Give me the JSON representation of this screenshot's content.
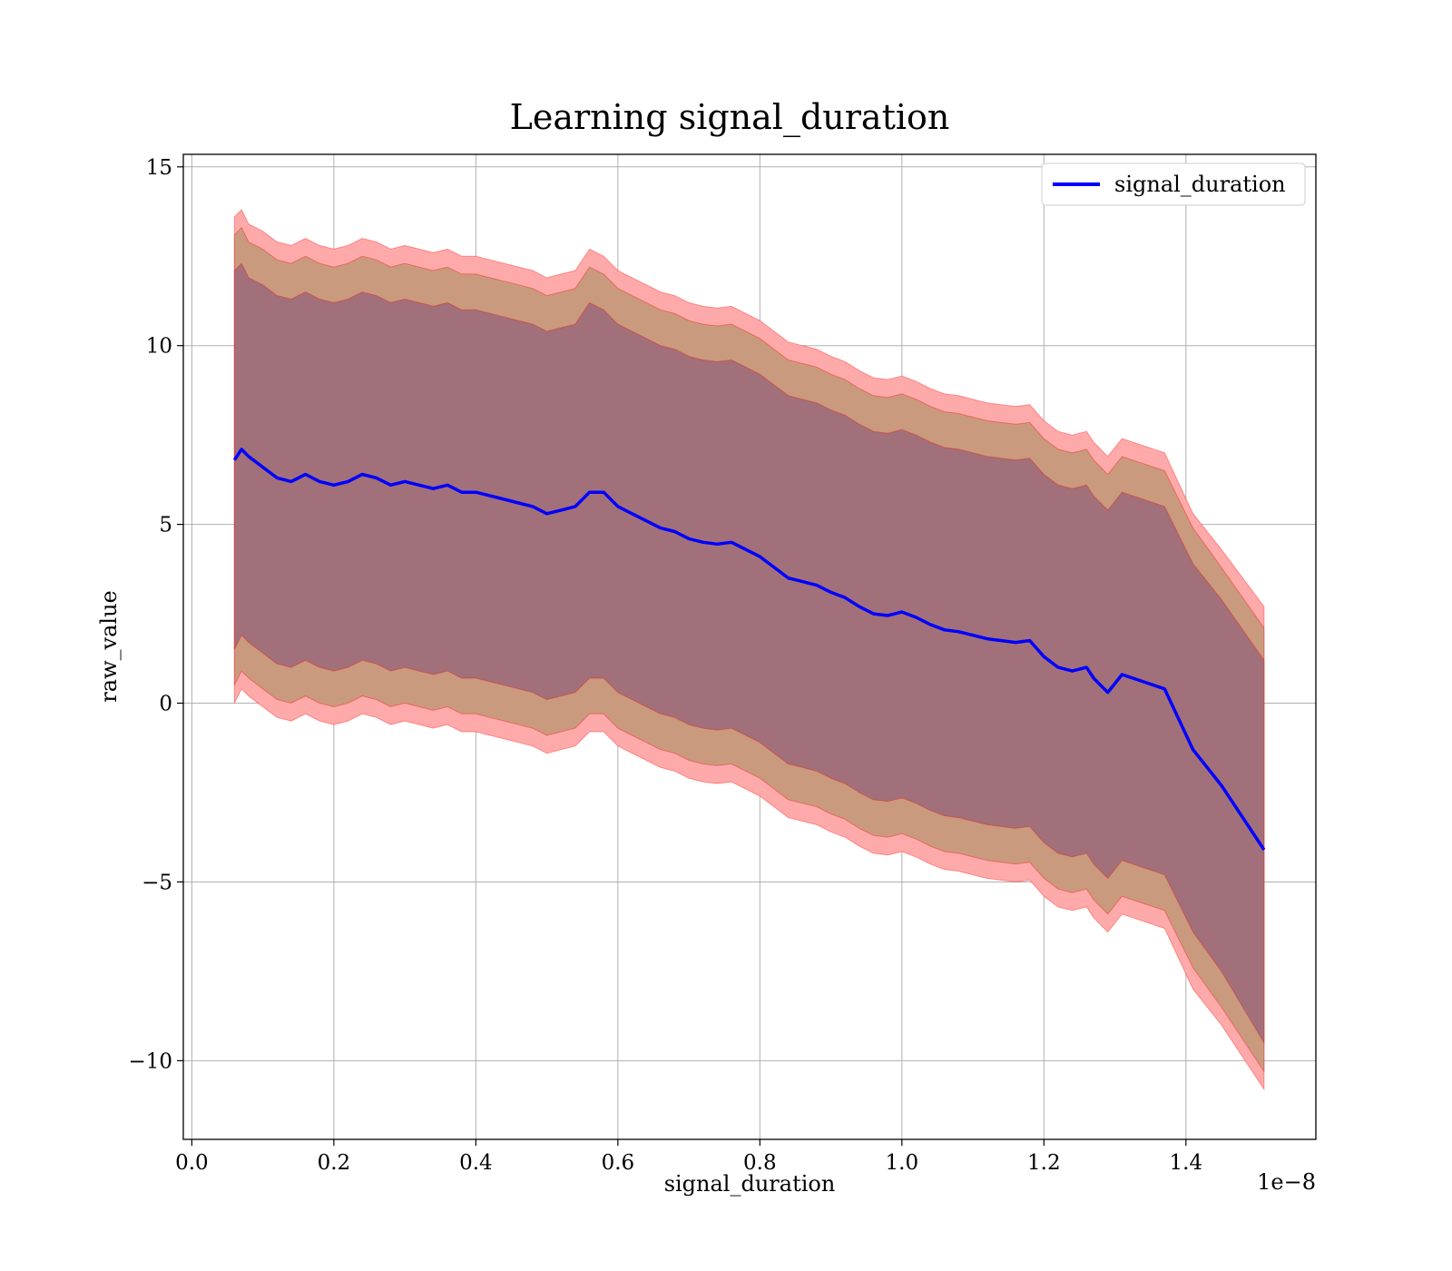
{
  "chart_data": {
    "type": "line",
    "title": "Learning signal_duration",
    "xlabel": "signal_duration",
    "ylabel": "raw_value",
    "x_offset_label": "1e−8",
    "xlim": [
      -0.012,
      1.583
    ],
    "ylim": [
      -12.2,
      15.35
    ],
    "x_ticks": [
      0.0,
      0.2,
      0.4,
      0.6,
      0.8,
      1.0,
      1.2,
      1.4
    ],
    "x_tick_labels": [
      "0.0",
      "0.2",
      "0.4",
      "0.6",
      "0.8",
      "1.0",
      "1.2",
      "1.4"
    ],
    "y_ticks": [
      15,
      10,
      5,
      0,
      -5,
      -10
    ],
    "y_tick_labels": [
      "15",
      "10",
      "5",
      "0",
      "−5",
      "−10"
    ],
    "grid": true,
    "legend": {
      "position": "top-right",
      "entries": [
        "signal_duration"
      ]
    },
    "colors": {
      "line": "#0000ff",
      "band": "#ff0000",
      "outer_band_fill": "#ffaaaa",
      "middle_band_fill": "#c99a7e",
      "inner_band_fill": "#a2707a"
    },
    "x": [
      0.06,
      0.07,
      0.08,
      0.1,
      0.12,
      0.14,
      0.16,
      0.18,
      0.2,
      0.22,
      0.24,
      0.26,
      0.28,
      0.3,
      0.32,
      0.34,
      0.36,
      0.38,
      0.4,
      0.42,
      0.44,
      0.46,
      0.48,
      0.5,
      0.52,
      0.54,
      0.56,
      0.58,
      0.6,
      0.62,
      0.64,
      0.66,
      0.68,
      0.7,
      0.72,
      0.74,
      0.76,
      0.78,
      0.8,
      0.82,
      0.84,
      0.86,
      0.88,
      0.9,
      0.92,
      0.94,
      0.96,
      0.98,
      1.0,
      1.02,
      1.04,
      1.06,
      1.08,
      1.1,
      1.12,
      1.14,
      1.16,
      1.18,
      1.2,
      1.22,
      1.24,
      1.26,
      1.27,
      1.29,
      1.31,
      1.34,
      1.37,
      1.41,
      1.45,
      1.51
    ],
    "series": [
      {
        "name": "signal_duration",
        "y": [
          6.8,
          7.1,
          6.9,
          6.6,
          6.3,
          6.2,
          6.4,
          6.2,
          6.1,
          6.2,
          6.4,
          6.3,
          6.1,
          6.2,
          6.1,
          6.0,
          6.1,
          5.9,
          5.9,
          5.8,
          5.7,
          5.6,
          5.5,
          5.3,
          5.4,
          5.5,
          5.9,
          5.9,
          5.5,
          5.3,
          5.1,
          4.9,
          4.8,
          4.6,
          4.5,
          4.45,
          4.5,
          4.3,
          4.1,
          3.8,
          3.5,
          3.4,
          3.3,
          3.1,
          2.95,
          2.7,
          2.5,
          2.45,
          2.55,
          2.4,
          2.2,
          2.05,
          2.0,
          1.9,
          1.8,
          1.75,
          1.7,
          1.75,
          1.3,
          1.0,
          0.9,
          1.0,
          0.7,
          0.3,
          0.8,
          0.6,
          0.4,
          -1.3,
          -2.3,
          -4.1
        ]
      }
    ],
    "bands": [
      {
        "upper": [
          13.6,
          13.8,
          13.4,
          13.2,
          12.9,
          12.8,
          13.0,
          12.8,
          12.7,
          12.8,
          13.0,
          12.9,
          12.7,
          12.8,
          12.7,
          12.6,
          12.7,
          12.5,
          12.5,
          12.4,
          12.3,
          12.2,
          12.1,
          11.9,
          12.0,
          12.1,
          12.7,
          12.5,
          12.1,
          11.9,
          11.7,
          11.5,
          11.4,
          11.2,
          11.1,
          11.05,
          11.1,
          10.9,
          10.7,
          10.4,
          10.1,
          10.0,
          9.9,
          9.7,
          9.55,
          9.3,
          9.1,
          9.05,
          9.15,
          9.0,
          8.8,
          8.65,
          8.6,
          8.5,
          8.4,
          8.35,
          8.3,
          8.35,
          7.9,
          7.6,
          7.5,
          7.6,
          7.3,
          6.9,
          7.4,
          7.2,
          7.0,
          5.3,
          4.3,
          2.7
        ],
        "lower": [
          0.0,
          0.4,
          0.2,
          -0.1,
          -0.4,
          -0.5,
          -0.3,
          -0.5,
          -0.6,
          -0.5,
          -0.3,
          -0.4,
          -0.6,
          -0.5,
          -0.6,
          -0.7,
          -0.6,
          -0.8,
          -0.8,
          -0.9,
          -1.0,
          -1.1,
          -1.2,
          -1.4,
          -1.3,
          -1.2,
          -0.8,
          -0.8,
          -1.2,
          -1.4,
          -1.6,
          -1.8,
          -1.9,
          -2.1,
          -2.2,
          -2.25,
          -2.2,
          -2.4,
          -2.6,
          -2.9,
          -3.2,
          -3.3,
          -3.4,
          -3.6,
          -3.75,
          -4.0,
          -4.2,
          -4.25,
          -4.15,
          -4.3,
          -4.5,
          -4.65,
          -4.7,
          -4.8,
          -4.9,
          -4.95,
          -5.0,
          -4.95,
          -5.4,
          -5.7,
          -5.8,
          -5.7,
          -6.0,
          -6.4,
          -5.9,
          -6.1,
          -6.3,
          -8.0,
          -9.0,
          -10.8
        ]
      },
      {
        "upper": [
          13.1,
          13.3,
          12.9,
          12.7,
          12.4,
          12.3,
          12.5,
          12.3,
          12.2,
          12.3,
          12.5,
          12.4,
          12.2,
          12.3,
          12.2,
          12.1,
          12.2,
          12.0,
          12.0,
          11.9,
          11.8,
          11.7,
          11.6,
          11.4,
          11.5,
          11.6,
          12.2,
          12.0,
          11.6,
          11.4,
          11.2,
          11.0,
          10.9,
          10.7,
          10.6,
          10.55,
          10.6,
          10.4,
          10.2,
          9.9,
          9.6,
          9.5,
          9.4,
          9.2,
          9.05,
          8.8,
          8.6,
          8.55,
          8.65,
          8.5,
          8.3,
          8.15,
          8.1,
          8.0,
          7.9,
          7.85,
          7.8,
          7.85,
          7.4,
          7.1,
          7.0,
          7.1,
          6.8,
          6.4,
          6.9,
          6.7,
          6.5,
          4.9,
          3.8,
          2.1
        ],
        "lower": [
          0.5,
          0.9,
          0.7,
          0.4,
          0.1,
          0.0,
          0.2,
          0.0,
          -0.1,
          0.0,
          0.2,
          0.1,
          -0.1,
          0.0,
          -0.1,
          -0.2,
          -0.1,
          -0.3,
          -0.3,
          -0.4,
          -0.5,
          -0.6,
          -0.7,
          -0.9,
          -0.8,
          -0.7,
          -0.3,
          -0.3,
          -0.7,
          -0.9,
          -1.1,
          -1.3,
          -1.4,
          -1.6,
          -1.7,
          -1.75,
          -1.7,
          -1.9,
          -2.1,
          -2.4,
          -2.7,
          -2.8,
          -2.9,
          -3.1,
          -3.25,
          -3.5,
          -3.7,
          -3.75,
          -3.65,
          -3.8,
          -4.0,
          -4.15,
          -4.2,
          -4.3,
          -4.4,
          -4.45,
          -4.5,
          -4.45,
          -4.9,
          -5.2,
          -5.3,
          -5.2,
          -5.5,
          -5.9,
          -5.4,
          -5.6,
          -5.8,
          -7.4,
          -8.5,
          -10.3
        ]
      },
      {
        "upper": [
          12.1,
          12.3,
          11.9,
          11.7,
          11.4,
          11.3,
          11.5,
          11.3,
          11.2,
          11.3,
          11.5,
          11.4,
          11.2,
          11.3,
          11.2,
          11.1,
          11.2,
          11.0,
          11.0,
          10.9,
          10.8,
          10.7,
          10.6,
          10.4,
          10.5,
          10.6,
          11.2,
          11.0,
          10.6,
          10.4,
          10.2,
          10.0,
          9.9,
          9.7,
          9.6,
          9.55,
          9.6,
          9.4,
          9.2,
          8.9,
          8.6,
          8.5,
          8.4,
          8.2,
          8.05,
          7.8,
          7.6,
          7.55,
          7.65,
          7.5,
          7.3,
          7.15,
          7.1,
          7.0,
          6.9,
          6.85,
          6.8,
          6.85,
          6.4,
          6.1,
          6.0,
          6.1,
          5.8,
          5.4,
          5.9,
          5.7,
          5.5,
          3.9,
          2.9,
          1.2
        ],
        "lower": [
          1.5,
          1.9,
          1.7,
          1.4,
          1.1,
          1.0,
          1.2,
          1.0,
          0.9,
          1.0,
          1.2,
          1.1,
          0.9,
          1.0,
          0.9,
          0.8,
          0.9,
          0.7,
          0.7,
          0.6,
          0.5,
          0.4,
          0.3,
          0.1,
          0.2,
          0.3,
          0.7,
          0.7,
          0.3,
          0.1,
          -0.1,
          -0.3,
          -0.4,
          -0.6,
          -0.7,
          -0.75,
          -0.7,
          -0.9,
          -1.1,
          -1.4,
          -1.7,
          -1.8,
          -1.9,
          -2.1,
          -2.25,
          -2.5,
          -2.7,
          -2.75,
          -2.65,
          -2.8,
          -3.0,
          -3.15,
          -3.2,
          -3.3,
          -3.4,
          -3.45,
          -3.5,
          -3.45,
          -3.9,
          -4.2,
          -4.3,
          -4.2,
          -4.5,
          -4.9,
          -4.4,
          -4.6,
          -4.8,
          -6.4,
          -7.5,
          -9.5
        ]
      }
    ]
  }
}
